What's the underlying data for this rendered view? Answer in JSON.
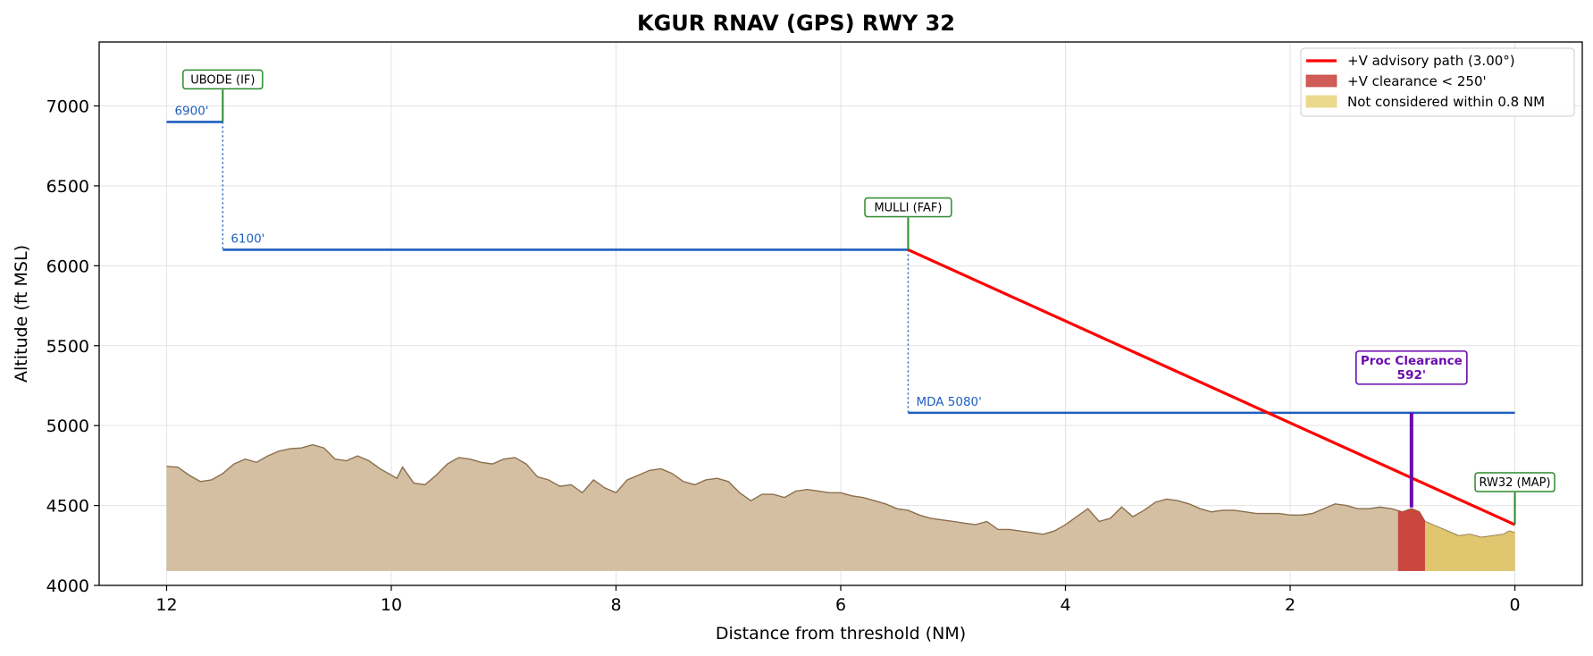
{
  "chart_data": {
    "type": "line",
    "title": "KGUR  RNAV (GPS) RWY 32",
    "xlabel": "Distance from threshold (NM)",
    "ylabel": "Altitude (ft MSL)",
    "xlim": [
      12.6,
      -0.6
    ],
    "ylim": [
      4000,
      7400
    ],
    "x_ticks": [
      12,
      10,
      8,
      6,
      4,
      2,
      0
    ],
    "y_ticks": [
      4000,
      4500,
      5000,
      5500,
      6000,
      6500,
      7000
    ],
    "grid": true,
    "legend_position": "top-right",
    "legend": [
      {
        "label": "+V advisory path (3.00°)",
        "color": "#ff0000",
        "kind": "line"
      },
      {
        "label": "+V clearance < 250'",
        "color": "#c8403a",
        "kind": "patch"
      },
      {
        "label": "Not considered within 0.8 NM",
        "color": "#e8d27a",
        "kind": "patch"
      }
    ],
    "terrain": {
      "base": 4090,
      "fill_color": "#d4bfa3",
      "line_color": "#8b6f4e",
      "points": [
        [
          12.0,
          4745
        ],
        [
          11.9,
          4740
        ],
        [
          11.8,
          4690
        ],
        [
          11.7,
          4650
        ],
        [
          11.6,
          4660
        ],
        [
          11.5,
          4700
        ],
        [
          11.4,
          4760
        ],
        [
          11.3,
          4790
        ],
        [
          11.2,
          4770
        ],
        [
          11.1,
          4810
        ],
        [
          11.0,
          4840
        ],
        [
          10.9,
          4855
        ],
        [
          10.8,
          4860
        ],
        [
          10.7,
          4880
        ],
        [
          10.6,
          4860
        ],
        [
          10.5,
          4790
        ],
        [
          10.4,
          4780
        ],
        [
          10.3,
          4810
        ],
        [
          10.2,
          4780
        ],
        [
          10.1,
          4730
        ],
        [
          10.0,
          4690
        ],
        [
          9.95,
          4670
        ],
        [
          9.9,
          4740
        ],
        [
          9.8,
          4640
        ],
        [
          9.7,
          4630
        ],
        [
          9.6,
          4690
        ],
        [
          9.5,
          4760
        ],
        [
          9.4,
          4800
        ],
        [
          9.3,
          4790
        ],
        [
          9.2,
          4770
        ],
        [
          9.1,
          4760
        ],
        [
          9.0,
          4790
        ],
        [
          8.9,
          4800
        ],
        [
          8.8,
          4760
        ],
        [
          8.7,
          4680
        ],
        [
          8.6,
          4660
        ],
        [
          8.5,
          4620
        ],
        [
          8.4,
          4630
        ],
        [
          8.3,
          4580
        ],
        [
          8.2,
          4660
        ],
        [
          8.1,
          4610
        ],
        [
          8.0,
          4580
        ],
        [
          7.9,
          4660
        ],
        [
          7.8,
          4690
        ],
        [
          7.7,
          4720
        ],
        [
          7.6,
          4730
        ],
        [
          7.5,
          4700
        ],
        [
          7.4,
          4650
        ],
        [
          7.3,
          4630
        ],
        [
          7.2,
          4660
        ],
        [
          7.1,
          4670
        ],
        [
          7.0,
          4650
        ],
        [
          6.9,
          4580
        ],
        [
          6.8,
          4530
        ],
        [
          6.7,
          4570
        ],
        [
          6.6,
          4570
        ],
        [
          6.5,
          4550
        ],
        [
          6.4,
          4590
        ],
        [
          6.3,
          4600
        ],
        [
          6.2,
          4590
        ],
        [
          6.1,
          4580
        ],
        [
          6.0,
          4580
        ],
        [
          5.9,
          4560
        ],
        [
          5.8,
          4550
        ],
        [
          5.7,
          4530
        ],
        [
          5.6,
          4510
        ],
        [
          5.5,
          4480
        ],
        [
          5.4,
          4470
        ],
        [
          5.3,
          4440
        ],
        [
          5.2,
          4420
        ],
        [
          5.1,
          4410
        ],
        [
          5.0,
          4400
        ],
        [
          4.9,
          4390
        ],
        [
          4.8,
          4380
        ],
        [
          4.7,
          4400
        ],
        [
          4.6,
          4350
        ],
        [
          4.5,
          4350
        ],
        [
          4.4,
          4340
        ],
        [
          4.3,
          4330
        ],
        [
          4.2,
          4320
        ],
        [
          4.1,
          4340
        ],
        [
          4.0,
          4380
        ],
        [
          3.9,
          4430
        ],
        [
          3.8,
          4480
        ],
        [
          3.7,
          4400
        ],
        [
          3.6,
          4420
        ],
        [
          3.5,
          4490
        ],
        [
          3.4,
          4430
        ],
        [
          3.3,
          4470
        ],
        [
          3.2,
          4520
        ],
        [
          3.1,
          4540
        ],
        [
          3.0,
          4530
        ],
        [
          2.9,
          4510
        ],
        [
          2.8,
          4480
        ],
        [
          2.7,
          4460
        ],
        [
          2.6,
          4470
        ],
        [
          2.5,
          4470
        ],
        [
          2.4,
          4460
        ],
        [
          2.3,
          4450
        ],
        [
          2.2,
          4450
        ],
        [
          2.1,
          4450
        ],
        [
          2.0,
          4440
        ],
        [
          1.9,
          4440
        ],
        [
          1.8,
          4450
        ],
        [
          1.7,
          4480
        ],
        [
          1.6,
          4510
        ],
        [
          1.5,
          4500
        ],
        [
          1.4,
          4480
        ],
        [
          1.3,
          4480
        ],
        [
          1.2,
          4490
        ],
        [
          1.1,
          4480
        ],
        [
          1.0,
          4460
        ],
        [
          0.92,
          4480
        ],
        [
          0.85,
          4460
        ],
        [
          0.8,
          4400
        ],
        [
          0.7,
          4370
        ],
        [
          0.6,
          4340
        ],
        [
          0.5,
          4310
        ],
        [
          0.4,
          4320
        ],
        [
          0.3,
          4300
        ],
        [
          0.2,
          4310
        ],
        [
          0.1,
          4320
        ],
        [
          0.05,
          4340
        ],
        [
          0.0,
          4330
        ]
      ]
    },
    "red_zone": {
      "x_from": 1.04,
      "x_to": 0.8,
      "color": "#c8403a"
    },
    "yellow_zone": {
      "x_from": 0.8,
      "x_to": 0.0,
      "color": "#e0c766"
    },
    "step_down": {
      "color": "#1f5fbf",
      "segments": [
        {
          "from": 12.0,
          "to": 11.5,
          "alt": 6900,
          "label": "6900'"
        },
        {
          "from": 11.5,
          "to": 5.4,
          "alt": 6100,
          "label": "6100'"
        },
        {
          "from": 5.4,
          "to": 0.0,
          "alt": 5080,
          "label": "MDA 5080'"
        }
      ]
    },
    "advisory_path": {
      "color": "#ff0000",
      "points": [
        [
          5.4,
          6100
        ],
        [
          0.0,
          4380
        ]
      ]
    },
    "fixes": [
      {
        "name": "UBODE (IF)",
        "x": 11.5,
        "alt": 6900
      },
      {
        "name": "MULLI (FAF)",
        "x": 5.4,
        "alt": 6100
      },
      {
        "name": "RW32 (MAP)",
        "x": 0.0,
        "alt": 4380
      }
    ],
    "proc_clearance": {
      "x": 0.92,
      "top": 5080,
      "bottom": 4488,
      "label_line1": "Proc Clearance",
      "label_line2": "592'",
      "color": "#6a0dad"
    }
  }
}
